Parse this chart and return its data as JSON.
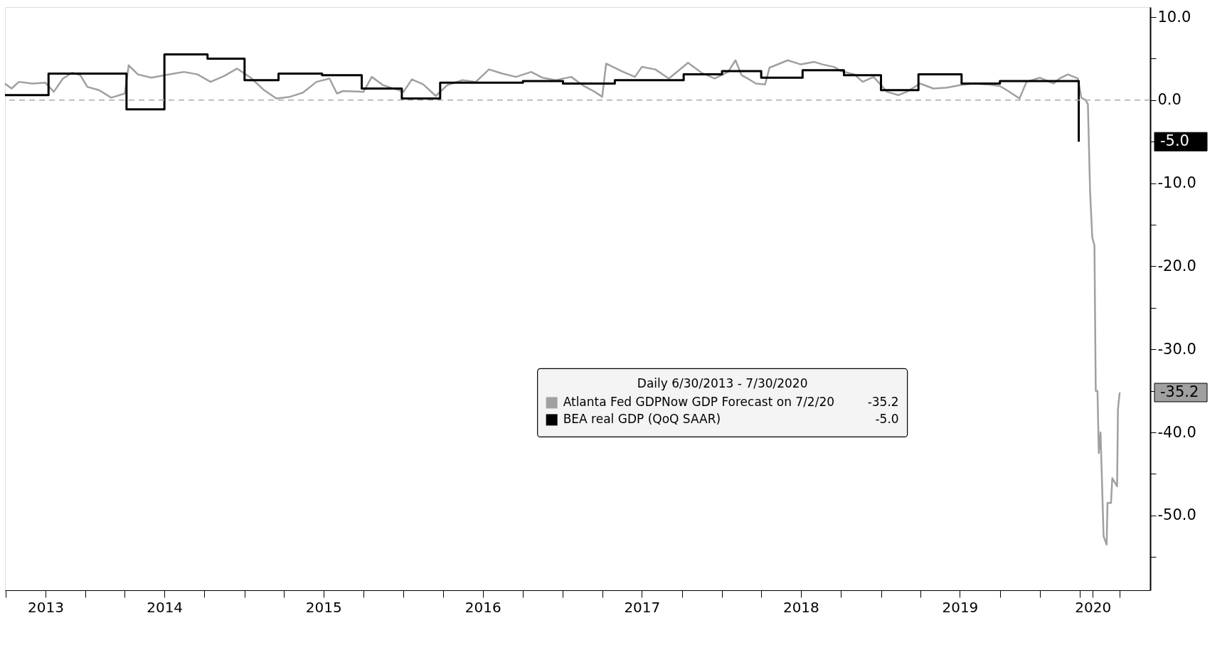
{
  "chart_data": {
    "type": "line",
    "legend_title": "Daily 6/30/2013 - 7/30/2020",
    "legend": "center",
    "grid": false,
    "xlim": [
      "2013-06-30",
      "2020-09-10"
    ],
    "xticks": [
      {
        "value": "2013-07-01",
        "label": null
      },
      {
        "value": "2013-10-01",
        "label": "2013"
      },
      {
        "value": "2014-01-01",
        "label": null
      },
      {
        "value": "2014-04-01",
        "label": null
      },
      {
        "value": "2014-07-01",
        "label": "2014"
      },
      {
        "value": "2014-10-01",
        "label": null
      },
      {
        "value": "2015-01-01",
        "label": null
      },
      {
        "value": "2015-04-01",
        "label": null
      },
      {
        "value": "2015-07-01",
        "label": "2015"
      },
      {
        "value": "2015-10-01",
        "label": null
      },
      {
        "value": "2016-01-01",
        "label": null
      },
      {
        "value": "2016-04-01",
        "label": null
      },
      {
        "value": "2016-07-01",
        "label": "2016"
      },
      {
        "value": "2016-10-01",
        "label": null
      },
      {
        "value": "2017-01-01",
        "label": null
      },
      {
        "value": "2017-04-01",
        "label": null
      },
      {
        "value": "2017-07-01",
        "label": "2017"
      },
      {
        "value": "2017-10-01",
        "label": null
      },
      {
        "value": "2018-01-01",
        "label": null
      },
      {
        "value": "2018-04-01",
        "label": null
      },
      {
        "value": "2018-07-01",
        "label": "2018"
      },
      {
        "value": "2018-10-01",
        "label": null
      },
      {
        "value": "2019-01-01",
        "label": null
      },
      {
        "value": "2019-04-01",
        "label": null
      },
      {
        "value": "2019-07-01",
        "label": "2019"
      },
      {
        "value": "2019-10-01",
        "label": null
      },
      {
        "value": "2020-01-01",
        "label": null
      },
      {
        "value": "2020-04-01",
        "label": null
      },
      {
        "value": "2020-05-01",
        "label": "2020"
      },
      {
        "value": "2020-07-01",
        "label": null
      }
    ],
    "ylim": [
      -59,
      11.2
    ],
    "yticks": [
      {
        "value": 10,
        "label": "10.0"
      },
      {
        "value": 5,
        "label": null
      },
      {
        "value": 0,
        "label": "0.0"
      },
      {
        "value": -5,
        "label": null
      },
      {
        "value": -10,
        "label": "-10.0"
      },
      {
        "value": -15,
        "label": null
      },
      {
        "value": -20,
        "label": "-20.0"
      },
      {
        "value": -25,
        "label": null
      },
      {
        "value": -30,
        "label": "-30.0"
      },
      {
        "value": -35,
        "label": null
      },
      {
        "value": -40,
        "label": "-40.0"
      },
      {
        "value": -45,
        "label": null
      },
      {
        "value": -50,
        "label": "-50.0"
      },
      {
        "value": -55,
        "label": null
      }
    ],
    "annotations": [
      "-35.2",
      "-5.0"
    ],
    "ref_lines": [
      {
        "axis": "y",
        "value": 0,
        "label": null,
        "color": "#aaaaaa",
        "line_style": "dashed"
      }
    ],
    "series": [
      {
        "name": "Atlanta Fed GDPNow GDP Forecast on 7/2/20",
        "type": "line",
        "color": "#a0a0a0",
        "x": [
          "2013-06-30",
          "2013-07-15",
          "2013-08-01",
          "2013-09-01",
          "2013-10-01",
          "2013-10-20",
          "2013-11-10",
          "2013-12-01",
          "2013-12-20",
          "2014-01-05",
          "2014-02-01",
          "2014-03-01",
          "2014-04-01",
          "2014-04-10",
          "2014-05-01",
          "2014-06-01",
          "2014-07-01",
          "2014-08-15",
          "2014-09-15",
          "2014-10-15",
          "2014-11-15",
          "2014-12-15",
          "2015-01-15",
          "2015-02-15",
          "2015-03-15",
          "2015-04-15",
          "2015-05-15",
          "2015-06-15",
          "2015-07-15",
          "2015-08-01",
          "2015-08-15",
          "2015-10-01",
          "2015-10-20",
          "2015-11-15",
          "2015-12-15",
          "2016-01-01",
          "2016-01-20",
          "2016-02-15",
          "2016-03-15",
          "2016-04-10",
          "2016-05-15",
          "2016-06-15",
          "2016-07-15",
          "2016-08-15",
          "2016-09-15",
          "2016-10-20",
          "2016-11-15",
          "2016-12-15",
          "2017-01-20",
          "2017-02-15",
          "2017-03-15",
          "2017-04-01",
          "2017-04-10",
          "2017-05-15",
          "2017-06-15",
          "2017-07-01",
          "2017-08-01",
          "2017-09-01",
          "2017-10-15",
          "2017-11-15",
          "2017-12-15",
          "2018-01-15",
          "2018-02-01",
          "2018-02-15",
          "2018-03-01",
          "2018-03-20",
          "2018-04-10",
          "2018-04-20",
          "2018-06-01",
          "2018-07-01",
          "2018-08-01",
          "2018-08-20",
          "2018-09-15",
          "2018-10-01",
          "2018-11-01",
          "2018-11-20",
          "2018-12-15",
          "2019-01-15",
          "2019-02-10",
          "2019-03-01",
          "2019-04-01",
          "2019-05-01",
          "2019-06-01",
          "2019-07-01",
          "2019-08-01",
          "2019-09-01",
          "2019-10-01",
          "2019-10-20",
          "2019-11-15",
          "2019-12-01",
          "2020-01-01",
          "2020-02-01",
          "2020-02-15",
          "2020-03-05",
          "2020-03-28",
          "2020-04-05",
          "2020-04-15",
          "2020-04-20",
          "2020-04-25",
          "2020-04-30",
          "2020-05-05",
          "2020-05-08",
          "2020-05-12",
          "2020-05-15",
          "2020-05-19",
          "2020-05-26",
          "2020-06-02",
          "2020-06-04",
          "2020-06-12",
          "2020-06-15",
          "2020-06-26",
          "2020-06-28",
          "2020-07-02"
        ],
        "values": [
          2.0,
          1.4,
          2.2,
          2.0,
          2.1,
          1.0,
          2.6,
          3.3,
          3.0,
          1.6,
          1.2,
          0.3,
          0.8,
          4.2,
          3.1,
          2.7,
          3.0,
          3.4,
          3.1,
          2.2,
          2.9,
          3.8,
          2.7,
          1.2,
          0.2,
          0.4,
          0.9,
          2.2,
          2.6,
          0.8,
          1.1,
          1.0,
          2.8,
          1.8,
          1.3,
          1.0,
          2.5,
          1.9,
          0.5,
          1.8,
          2.4,
          2.2,
          3.7,
          3.2,
          2.8,
          3.4,
          2.7,
          2.4,
          2.8,
          1.8,
          1.0,
          0.4,
          4.4,
          3.5,
          2.8,
          4.0,
          3.7,
          2.6,
          4.5,
          3.3,
          2.6,
          3.4,
          4.8,
          3.0,
          2.6,
          2.0,
          1.9,
          3.9,
          4.8,
          4.3,
          4.6,
          4.3,
          4.0,
          3.5,
          3.1,
          2.2,
          2.8,
          1.0,
          0.6,
          1.0,
          2.0,
          1.4,
          1.5,
          1.8,
          2.0,
          1.9,
          1.7,
          1.1,
          0.2,
          2.2,
          2.7,
          2.0,
          2.6,
          3.1,
          2.6,
          0.3,
          0.0,
          -0.5,
          -11.0,
          -16.5,
          -17.5,
          -35.0,
          -35.0,
          -42.5,
          -40.0,
          -52.5,
          -53.5,
          -48.5,
          -48.5,
          -45.5,
          -46.5,
          -37.2,
          -35.2
        ]
      },
      {
        "name": "BEA real GDP (QoQ SAAR)",
        "type": "step",
        "color": "#000000",
        "x": [
          "2013-06-30",
          "2013-10-08",
          "2014-04-05",
          "2014-07-01",
          "2014-10-08",
          "2015-01-01",
          "2015-03-20",
          "2015-06-28",
          "2015-09-27",
          "2015-12-28",
          "2016-03-25",
          "2016-10-01",
          "2017-01-01",
          "2017-04-30",
          "2017-10-05",
          "2018-01-01",
          "2018-04-01",
          "2018-07-05",
          "2018-10-08",
          "2019-01-01",
          "2019-03-28",
          "2019-07-05",
          "2019-10-01",
          "2020-03-30"
        ],
        "values": [
          0.6,
          3.2,
          -1.1,
          5.5,
          5.0,
          2.4,
          3.2,
          3.0,
          1.4,
          0.2,
          2.1,
          2.3,
          2.0,
          2.4,
          3.1,
          3.5,
          2.7,
          3.6,
          3.0,
          1.2,
          3.1,
          2.0,
          2.3,
          -5.0
        ]
      }
    ]
  }
}
